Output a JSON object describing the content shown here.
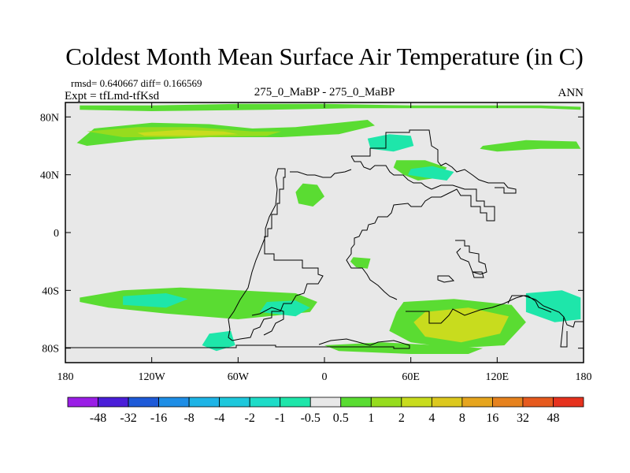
{
  "chart_data": {
    "type": "heatmap",
    "title": "Coldest Month Mean Surface Air Temperature (in C)",
    "stats_line": "rmsd= 0.640667 diff= 0.166569",
    "expt_line": "Expt = tfLmd-tfKsd",
    "center_label": "275_0_MaBP - 275_0_MaBP",
    "right_label": "ANN",
    "x_range": [
      -180,
      180
    ],
    "y_range": [
      -90,
      90
    ],
    "x_ticks": [
      {
        "value": -180,
        "label": "180"
      },
      {
        "value": -120,
        "label": "120W"
      },
      {
        "value": -60,
        "label": "60W"
      },
      {
        "value": 0,
        "label": "0"
      },
      {
        "value": 60,
        "label": "60E"
      },
      {
        "value": 120,
        "label": "120E"
      },
      {
        "value": 180,
        "label": "180"
      }
    ],
    "y_ticks": [
      {
        "value": 80,
        "label": "80N"
      },
      {
        "value": 40,
        "label": "40N"
      },
      {
        "value": 0,
        "label": "0"
      },
      {
        "value": -40,
        "label": "40S"
      },
      {
        "value": -80,
        "label": "80S"
      }
    ],
    "colorbar": {
      "colors": [
        "#9a1ee6",
        "#4a1ed8",
        "#1e5ad8",
        "#1e8ee6",
        "#1eb4e6",
        "#1ec8dc",
        "#1edcc8",
        "#1ee6aa",
        "#e8e8e8",
        "#5adc32",
        "#96dc1e",
        "#c8dc1e",
        "#dcc81e",
        "#e6a51e",
        "#e6821e",
        "#e65a1e",
        "#e6321e"
      ],
      "labels": [
        "-48",
        "-32",
        "-16",
        "-8",
        "-4",
        "-2",
        "-1",
        "-0.5",
        "0.5",
        "1",
        "2",
        "4",
        "8",
        "16",
        "32",
        "48"
      ]
    },
    "background_value_range": [
      -0.5,
      0.5
    ],
    "regions": [
      {
        "name": "arctic-band",
        "level": 1,
        "lon": [
          -172,
          -160,
          -120,
          -80,
          -50,
          -20,
          10,
          30,
          35,
          10,
          -30,
          -80,
          -130,
          -165,
          -172
        ],
        "lat": [
          62,
          72,
          76,
          75,
          72,
          73,
          76,
          78,
          74,
          68,
          66,
          66,
          64,
          60,
          62
        ]
      },
      {
        "name": "arctic-band-core",
        "level": 2,
        "lon": [
          -165,
          -130,
          -90,
          -50,
          -30,
          -40,
          -90,
          -140,
          -165
        ],
        "lat": [
          70,
          73,
          73,
          70,
          70,
          67,
          66,
          66,
          70
        ]
      },
      {
        "name": "arctic-band-peak",
        "level": 3,
        "lon": [
          -130,
          -100,
          -70,
          -60,
          -90,
          -125
        ],
        "lat": [
          69,
          71,
          70,
          68,
          67,
          67
        ]
      },
      {
        "name": "north-top-strip",
        "level": 1,
        "lon": [
          -170,
          -120,
          -60,
          0,
          60,
          150,
          178,
          178,
          150,
          80,
          20,
          -40,
          -120,
          -170
        ],
        "lat": [
          88,
          88,
          89,
          89,
          88,
          88,
          87,
          85,
          86,
          86,
          86,
          85,
          84,
          85
        ]
      },
      {
        "name": "eurasia-north",
        "level": 1,
        "lon": [
          110,
          140,
          175,
          178,
          150,
          120,
          108
        ],
        "lat": [
          60,
          64,
          63,
          58,
          58,
          56,
          58
        ]
      },
      {
        "name": "asia-center",
        "level": 1,
        "lon": [
          50,
          70,
          85,
          80,
          65,
          55,
          48
        ],
        "lat": [
          50,
          50,
          45,
          38,
          36,
          40,
          45
        ]
      },
      {
        "name": "atlantic-patch",
        "level": 1,
        "lon": [
          -15,
          -5,
          0,
          -8,
          -18,
          -20
        ],
        "lat": [
          34,
          33,
          25,
          18,
          20,
          28
        ]
      },
      {
        "name": "africa-south-patch",
        "level": 1,
        "lon": [
          20,
          32,
          30,
          22,
          18
        ],
        "lat": [
          -17,
          -18,
          -25,
          -24,
          -20
        ]
      },
      {
        "name": "south-west-band",
        "level": 1,
        "lon": [
          -170,
          -140,
          -100,
          -60,
          -20,
          -5,
          -10,
          -60,
          -110,
          -150,
          -170
        ],
        "lat": [
          -45,
          -40,
          -38,
          -40,
          -42,
          -48,
          -55,
          -60,
          -56,
          -52,
          -48
        ]
      },
      {
        "name": "south-pacific-blue",
        "level": -1,
        "lon": [
          -40,
          -20,
          -10,
          -20,
          -45
        ],
        "lat": [
          -48,
          -47,
          -52,
          -58,
          -55
        ]
      },
      {
        "name": "south-west-blue",
        "level": -1,
        "lon": [
          -140,
          -110,
          -95,
          -110,
          -140
        ],
        "lat": [
          -44,
          -42,
          -46,
          -52,
          -50
        ]
      },
      {
        "name": "south-indian-warm",
        "level": 1,
        "lon": [
          55,
          90,
          130,
          140,
          125,
          90,
          60,
          45,
          50
        ],
        "lat": [
          -48,
          -46,
          -50,
          -62,
          -78,
          -80,
          -76,
          -68,
          -55
        ]
      },
      {
        "name": "south-indian-core",
        "level": 3,
        "lon": [
          70,
          100,
          128,
          122,
          95,
          70,
          62
        ],
        "lat": [
          -55,
          -52,
          -58,
          -70,
          -76,
          -72,
          -62
        ]
      },
      {
        "name": "south-east-band",
        "level": -1,
        "lon": [
          140,
          165,
          178,
          178,
          160,
          140
        ],
        "lat": [
          -42,
          -40,
          -45,
          -60,
          -62,
          -55
        ]
      },
      {
        "name": "antarctic-strip",
        "level": 1,
        "lon": [
          0,
          40,
          80,
          110,
          100,
          60,
          10
        ],
        "lat": [
          -78,
          -76,
          -78,
          -80,
          -84,
          -84,
          -82
        ]
      },
      {
        "name": "south-west-wedge",
        "level": -1,
        "lon": [
          -80,
          -65,
          -62,
          -75,
          -85
        ],
        "lat": [
          -70,
          -68,
          -78,
          -82,
          -78
        ]
      },
      {
        "name": "north-cold-patch",
        "level": -1,
        "lon": [
          30,
          45,
          60,
          62,
          48,
          32
        ],
        "lat": [
          65,
          68,
          67,
          60,
          56,
          58
        ]
      },
      {
        "name": "north-asia-cold",
        "level": -1,
        "lon": [
          60,
          75,
          90,
          85,
          70,
          58
        ],
        "lat": [
          44,
          46,
          42,
          36,
          38,
          40
        ]
      }
    ]
  }
}
